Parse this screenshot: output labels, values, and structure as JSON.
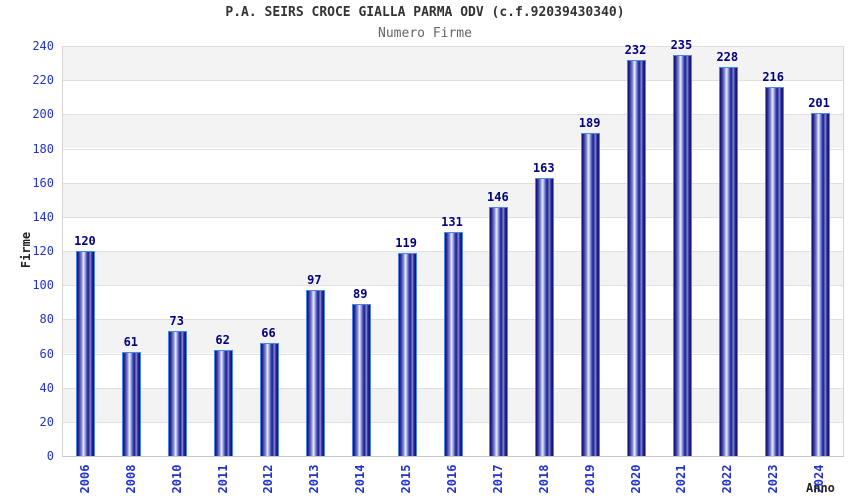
{
  "title": "P.A. SEIRS CROCE GIALLA PARMA ODV (c.f.92039430340)",
  "subtitle": "Numero Firme",
  "chart_data": {
    "type": "bar",
    "title": "P.A. SEIRS CROCE GIALLA PARMA ODV (c.f.92039430340)",
    "subtitle": "Numero Firme",
    "xlabel": "Anno",
    "ylabel": "Firme",
    "categories": [
      "2006",
      "2008",
      "2010",
      "2011",
      "2012",
      "2013",
      "2014",
      "2015",
      "2016",
      "2017",
      "2018",
      "2019",
      "2020",
      "2021",
      "2022",
      "2023",
      "2024"
    ],
    "values": [
      120,
      61,
      73,
      62,
      66,
      97,
      89,
      119,
      131,
      146,
      163,
      189,
      232,
      235,
      228,
      216,
      201
    ],
    "ylim": [
      0,
      240
    ],
    "ytick_interval": 20,
    "yticks": [
      0,
      20,
      40,
      60,
      80,
      100,
      120,
      140,
      160,
      180,
      200,
      220,
      240
    ],
    "legend": null,
    "grid": "horizontal gridlines with alternating gray/white bands",
    "colors": {
      "bar_dark": "#0f0f6e",
      "bar_highlight": "#edf0fa",
      "bar_border": "#4d86ea",
      "value_label": "#000080",
      "tick_label": "#2233cc",
      "axis_title": "#222222",
      "title": "#333333",
      "subtitle": "#666666",
      "band_gray": "#f3f3f3",
      "gridline": "#e0e0e0"
    }
  }
}
